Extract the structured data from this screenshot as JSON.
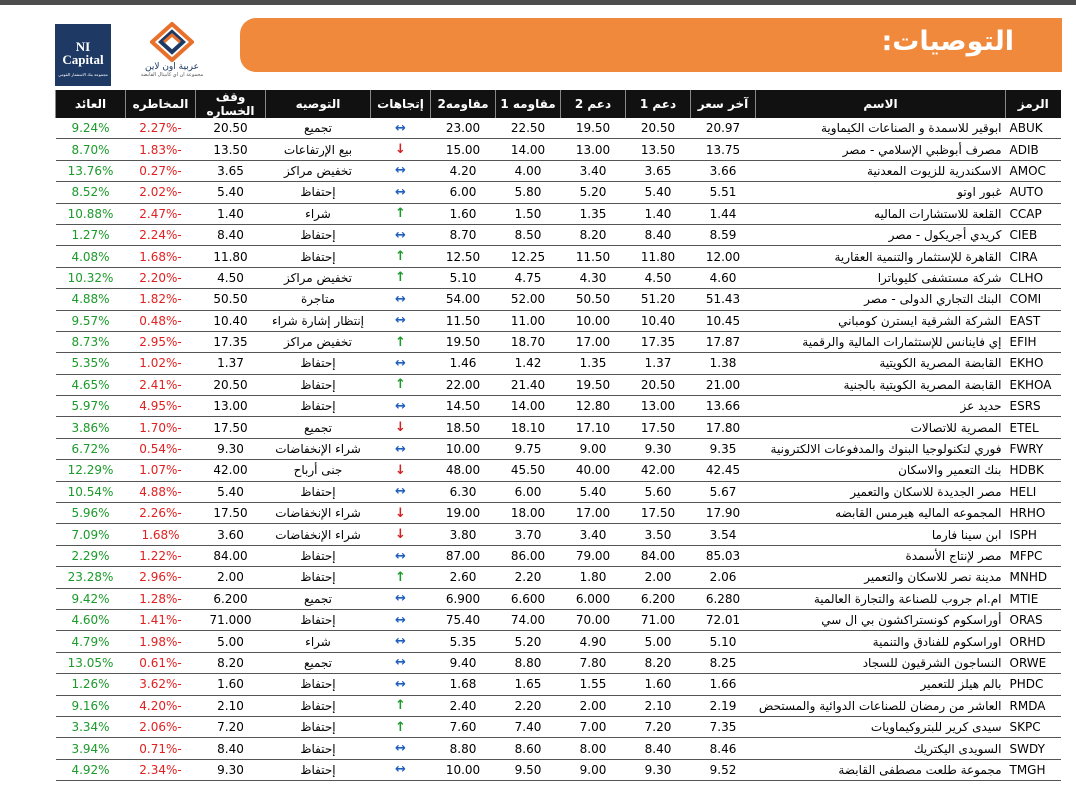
{
  "header": {
    "title": "التوصيات:"
  },
  "logos": {
    "ni_capital": "NI Capital",
    "ni_capital_sub": "مجموعة بنك الاستثمار القومي",
    "arabia": "عربية اون لاين",
    "arabia_sub": "مجموعة ان اي كابيتال القابضة"
  },
  "table": {
    "columns": [
      "الرمز",
      "الاسم",
      "آخر سعر",
      "دعم 1",
      "دعم 2",
      "مقاومه 1",
      "مقاومه2",
      "إتجاهات",
      "التوصيه",
      "وقف الخساره",
      "المخاطره",
      "العائد"
    ],
    "arrow_colors": {
      "↔": "#1f5fbf",
      "↓": "#d42020",
      "↑": "#1a9a2a"
    },
    "rows": [
      [
        "ABUK",
        "ابوقير للاسمدة و الصناعات الكيماوية",
        "20.97",
        "20.50",
        "19.50",
        "22.50",
        "23.00",
        "↔",
        "تجميع",
        "20.50",
        "-2.27%",
        "9.24%"
      ],
      [
        "ADIB",
        "مصرف أبوظبي الإسلامي - مصر",
        "13.75",
        "13.50",
        "13.00",
        "14.00",
        "15.00",
        "↓",
        "بيع الإرتفاعات",
        "13.50",
        "-1.83%",
        "8.70%"
      ],
      [
        "AMOC",
        "الاسكندرية للزيوت المعدنية",
        "3.66",
        "3.65",
        "3.40",
        "4.00",
        "4.20",
        "↔",
        "تخفيض مراكز",
        "3.65",
        "-0.27%",
        "13.76%"
      ],
      [
        "AUTO",
        "غبور اوتو",
        "5.51",
        "5.40",
        "5.20",
        "5.80",
        "6.00",
        "↔",
        "إحتفاظ",
        "5.40",
        "-2.02%",
        "8.52%"
      ],
      [
        "CCAP",
        "القلعة للاستشارات الماليه",
        "1.44",
        "1.40",
        "1.35",
        "1.50",
        "1.60",
        "↑",
        "شراء",
        "1.40",
        "-2.47%",
        "10.88%"
      ],
      [
        "CIEB",
        "كريدي أجريكول - مصر",
        "8.59",
        "8.40",
        "8.20",
        "8.50",
        "8.70",
        "↔",
        "إحتفاظ",
        "8.40",
        "-2.24%",
        "1.27%"
      ],
      [
        "CIRA",
        "القاهرة للإستثمار والتنمية العقارية",
        "12.00",
        "11.80",
        "11.50",
        "12.25",
        "12.50",
        "↑",
        "إحتفاظ",
        "11.80",
        "-1.68%",
        "4.08%"
      ],
      [
        "CLHO",
        "شركة مستشفى كليوباترا",
        "4.60",
        "4.50",
        "4.30",
        "4.75",
        "5.10",
        "↑",
        "تخفيض مراكز",
        "4.50",
        "-2.20%",
        "10.32%"
      ],
      [
        "COMI",
        "البنك التجاري الدولى - مصر",
        "51.43",
        "51.20",
        "50.50",
        "52.00",
        "54.00",
        "↔",
        "متاجرة",
        "50.50",
        "-1.82%",
        "4.88%"
      ],
      [
        "EAST",
        "الشركة الشرقية ايسترن كومباني",
        "10.45",
        "10.40",
        "10.00",
        "11.00",
        "11.50",
        "↔",
        "إنتظار إشارة شراء",
        "10.40",
        "-0.48%",
        "9.57%"
      ],
      [
        "EFIH",
        "إي فاينانس للإستثمارات المالية والرقمية",
        "17.87",
        "17.35",
        "17.00",
        "18.70",
        "19.50",
        "↑",
        "تخفيض مراكز",
        "17.35",
        "-2.95%",
        "8.73%"
      ],
      [
        "EKHO",
        "القابضة المصرية الكويتية",
        "1.38",
        "1.37",
        "1.35",
        "1.42",
        "1.46",
        "↔",
        "إحتفاظ",
        "1.37",
        "-1.02%",
        "5.35%"
      ],
      [
        "EKHOA",
        "القابضة المصرية الكويتية بالجنية",
        "21.00",
        "20.50",
        "19.50",
        "21.40",
        "22.00",
        "↑",
        "إحتفاظ",
        "20.50",
        "-2.41%",
        "4.65%"
      ],
      [
        "ESRS",
        "حديد عز",
        "13.66",
        "13.00",
        "12.80",
        "14.00",
        "14.50",
        "↔",
        "إحتفاظ",
        "13.00",
        "-4.95%",
        "5.97%"
      ],
      [
        "ETEL",
        "المصرية للاتصالات",
        "17.80",
        "17.50",
        "17.10",
        "18.10",
        "18.50",
        "↓",
        "تجميع",
        "17.50",
        "-1.70%",
        "3.86%"
      ],
      [
        "FWRY",
        "فوري لتكنولوجيا البنوك والمدفوعات الالكترونية",
        "9.35",
        "9.30",
        "9.00",
        "9.75",
        "10.00",
        "↔",
        "شراء الإنخفاضات",
        "9.30",
        "-0.54%",
        "6.72%"
      ],
      [
        "HDBK",
        "بنك التعمير والاسكان",
        "42.45",
        "42.00",
        "40.00",
        "45.50",
        "48.00",
        "↓",
        "جنى أرباح",
        "42.00",
        "-1.07%",
        "12.29%"
      ],
      [
        "HELI",
        "مصر الجديدة للاسكان والتعمير",
        "5.67",
        "5.60",
        "5.40",
        "6.00",
        "6.30",
        "↔",
        "إحتفاظ",
        "5.40",
        "-4.88%",
        "10.54%"
      ],
      [
        "HRHO",
        "المجموعه الماليه هيرمس القابضه",
        "17.90",
        "17.50",
        "17.00",
        "18.00",
        "19.00",
        "↓",
        "شراء الإنخفاضات",
        "17.50",
        "-2.26%",
        "5.96%"
      ],
      [
        "ISPH",
        "ابن سينا فارما",
        "3.54",
        "3.50",
        "3.40",
        "3.70",
        "3.80",
        "↓",
        "شراء الإنخفاضات",
        "3.60",
        "1.68%",
        "7.09%"
      ],
      [
        "MFPC",
        "مصر لإنتاج الأسمدة",
        "85.03",
        "84.00",
        "79.00",
        "86.00",
        "87.00",
        "↔",
        "إحتفاظ",
        "84.00",
        "-1.22%",
        "2.29%"
      ],
      [
        "MNHD",
        "مدينة نصر للاسكان والتعمير",
        "2.06",
        "2.00",
        "1.80",
        "2.20",
        "2.60",
        "↑",
        "إحتفاظ",
        "2.00",
        "-2.96%",
        "23.28%"
      ],
      [
        "MTIE",
        "ام.ام جروب للصناعة والتجارة العالمية",
        "6.280",
        "6.200",
        "6.000",
        "6.600",
        "6.900",
        "↔",
        "تجميع",
        "6.200",
        "-1.28%",
        "9.42%"
      ],
      [
        "ORAS",
        "أوراسكوم كونستراكشون بي ال سي",
        "72.01",
        "71.00",
        "70.00",
        "74.00",
        "75.40",
        "↔",
        "إحتفاظ",
        "71.000",
        "-1.41%",
        "4.60%"
      ],
      [
        "ORHD",
        "اوراسكوم للفنادق والتنمية",
        "5.10",
        "5.00",
        "4.90",
        "5.20",
        "5.35",
        "↔",
        "شراء",
        "5.00",
        "-1.98%",
        "4.79%"
      ],
      [
        "ORWE",
        "النساجون الشرقيون للسجاد",
        "8.25",
        "8.20",
        "7.80",
        "8.80",
        "9.40",
        "↔",
        "تجميع",
        "8.20",
        "-0.61%",
        "13.05%"
      ],
      [
        "PHDC",
        "بالم هيلز للتعمير",
        "1.66",
        "1.60",
        "1.55",
        "1.65",
        "1.68",
        "↔",
        "إحتفاظ",
        "1.60",
        "-3.62%",
        "1.26%"
      ],
      [
        "RMDA",
        "العاشر من رمضان للصناعات الدوائية والمستحض",
        "2.19",
        "2.10",
        "2.00",
        "2.20",
        "2.40",
        "↑",
        "إحتفاظ",
        "2.10",
        "-4.20%",
        "9.16%"
      ],
      [
        "SKPC",
        "سيدى كرير للبتروكيماويات",
        "7.35",
        "7.20",
        "7.00",
        "7.40",
        "7.60",
        "↑",
        "إحتفاظ",
        "7.20",
        "-2.06%",
        "3.34%"
      ],
      [
        "SWDY",
        "السويدى اليكتريك",
        "8.46",
        "8.40",
        "8.00",
        "8.60",
        "8.80",
        "↔",
        "إحتفاظ",
        "8.40",
        "-0.71%",
        "3.94%"
      ],
      [
        "TMGH",
        "مجموعة طلعت مصطفى القابضة",
        "9.52",
        "9.30",
        "9.00",
        "9.50",
        "10.00",
        "↔",
        "إحتفاظ",
        "9.30",
        "-2.34%",
        "4.92%"
      ]
    ]
  }
}
